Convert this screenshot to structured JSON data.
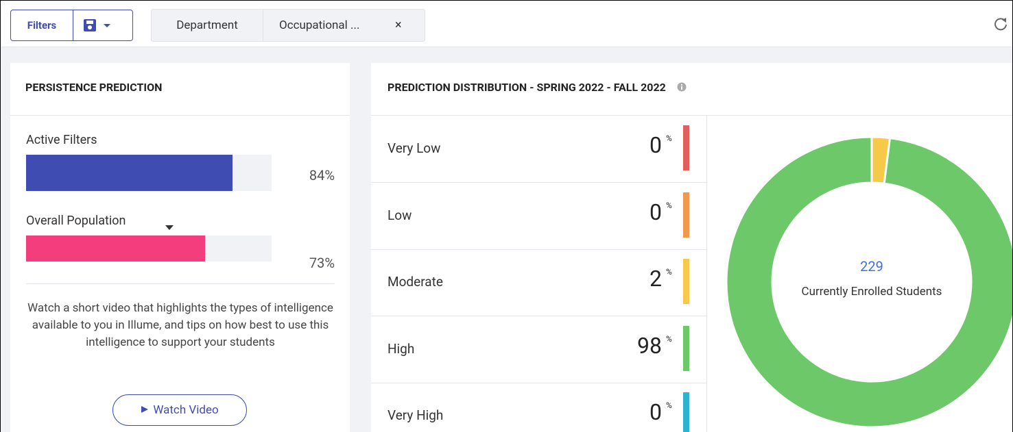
{
  "toolbar": {
    "filters_button": "Filters",
    "tabs": [
      "Department",
      "Occupational ..."
    ],
    "tab_close": "×"
  },
  "persistence": {
    "title": "PERSISTENCE PREDICTION",
    "bars": [
      {
        "label": "Active Filters",
        "value": 84,
        "value_label": "84%",
        "color": "#3f4db3"
      },
      {
        "label": "Overall Population",
        "value": 73,
        "value_label": "73%",
        "color": "#f33d7d"
      }
    ],
    "video_text": "Watch a short video that highlights the types of intelligence available to you in Illume, and tips on how best to use this intelligence to support your students",
    "button": "Watch Video"
  },
  "distribution": {
    "title": "PREDICTION DISTRIBUTION - SPRING 2022 - FALL 2022",
    "unit": "%",
    "rows": [
      {
        "label": "Very Low",
        "value": 0,
        "color": "#e35d5a"
      },
      {
        "label": "Low",
        "value": 0,
        "color": "#f0994d"
      },
      {
        "label": "Moderate",
        "value": 2,
        "color": "#f7c948"
      },
      {
        "label": "High",
        "value": 98,
        "color": "#6cc869"
      },
      {
        "label": "Very High",
        "value": 0,
        "color": "#2bb3cf"
      }
    ],
    "total": 229,
    "total_label": "Currently Enrolled Students"
  }
}
